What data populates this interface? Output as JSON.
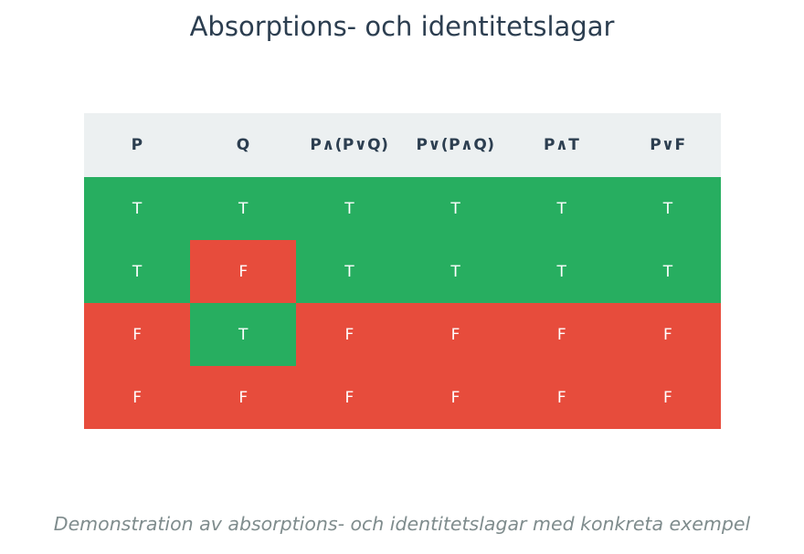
{
  "title": "Absorptions- och identitetslagar",
  "subtitle": "Demonstration av absorptions- och identitetslagar med konkreta exempel",
  "colors": {
    "true": "#27ae60",
    "false": "#e74c3c",
    "header_bg": "#ecf0f1",
    "header_text": "#2c3e50"
  },
  "chart_data": {
    "type": "table",
    "columns": [
      "P",
      "Q",
      "P∧(P∨Q)",
      "P∨(P∧Q)",
      "P∧T",
      "P∨F"
    ],
    "rows": [
      [
        "T",
        "T",
        "T",
        "T",
        "T",
        "T"
      ],
      [
        "T",
        "F",
        "T",
        "T",
        "T",
        "T"
      ],
      [
        "F",
        "T",
        "F",
        "F",
        "F",
        "F"
      ],
      [
        "F",
        "F",
        "F",
        "F",
        "F",
        "F"
      ]
    ]
  }
}
